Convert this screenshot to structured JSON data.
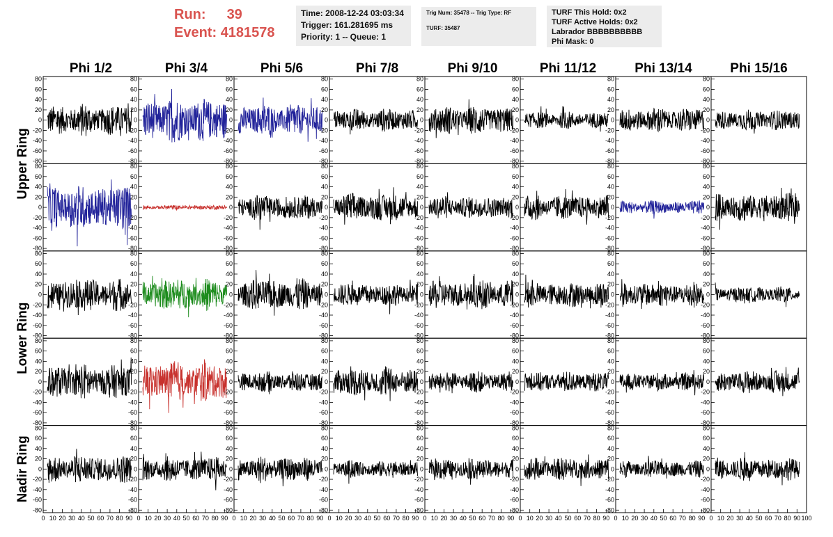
{
  "header": {
    "run_label": "Run:",
    "run_value": "39",
    "event_label": "Event:",
    "event_value": "4181578",
    "run_color": "#d9534f"
  },
  "info_boxes": {
    "box1": [
      "Time: 2008-12-24 03:03:34",
      "Trigger: 161.281695 ms",
      "Priority: 1 -- Queue: 1"
    ],
    "box2": [
      "Trig Num: 35478 -- Trig Type: RF",
      "",
      "TURF: 35487"
    ],
    "box3": [
      "TURF This Hold: 0x2",
      "TURF Active Holds: 0x2",
      "Labrador BBBBBBBBBB",
      "Phi Mask: 0"
    ]
  },
  "chart_data": {
    "type": "line",
    "columns": [
      "Phi 1/2",
      "Phi 3/4",
      "Phi 5/6",
      "Phi 7/8",
      "Phi 9/10",
      "Phi 11/12",
      "Phi 13/14",
      "Phi 15/16"
    ],
    "row_labels": [
      "Upper Ring",
      "Lower Ring",
      "Nadir Ring"
    ],
    "xlim": [
      0,
      100
    ],
    "ylim": [
      -85,
      85
    ],
    "y_ticks": [
      "80",
      "60",
      "40",
      "20",
      "0",
      "-20",
      "-40",
      "-60",
      "-80"
    ],
    "x_ticks": [
      "0",
      "10",
      "20",
      "30",
      "40",
      "50",
      "60",
      "70",
      "80",
      "90",
      "100"
    ],
    "color_map": {
      "k": "#000000",
      "b": "#22239a",
      "r": "#c8322e",
      "g": "#1e8c1e"
    },
    "panels": [
      [
        "k",
        "b",
        "b",
        "k",
        "k",
        "k",
        "k",
        "k"
      ],
      [
        "b",
        "r",
        "k",
        "k",
        "k",
        "k",
        "b",
        "k"
      ],
      [
        "k",
        "g",
        "k",
        "k",
        "k",
        "k",
        "k",
        "k"
      ],
      [
        "k",
        "r",
        "k",
        "k",
        "k",
        "k",
        "k",
        "k"
      ],
      [
        "k",
        "k",
        "k",
        "k",
        "k",
        "k",
        "k",
        "k"
      ]
    ],
    "amplitude": [
      [
        28,
        38,
        28,
        20,
        25,
        15,
        22,
        18
      ],
      [
        40,
        4,
        22,
        25,
        20,
        22,
        12,
        25
      ],
      [
        28,
        28,
        28,
        20,
        25,
        22,
        22,
        14
      ],
      [
        30,
        35,
        18,
        25,
        18,
        18,
        16,
        20
      ],
      [
        25,
        22,
        22,
        15,
        18,
        20,
        15,
        20
      ]
    ],
    "grid": false
  }
}
